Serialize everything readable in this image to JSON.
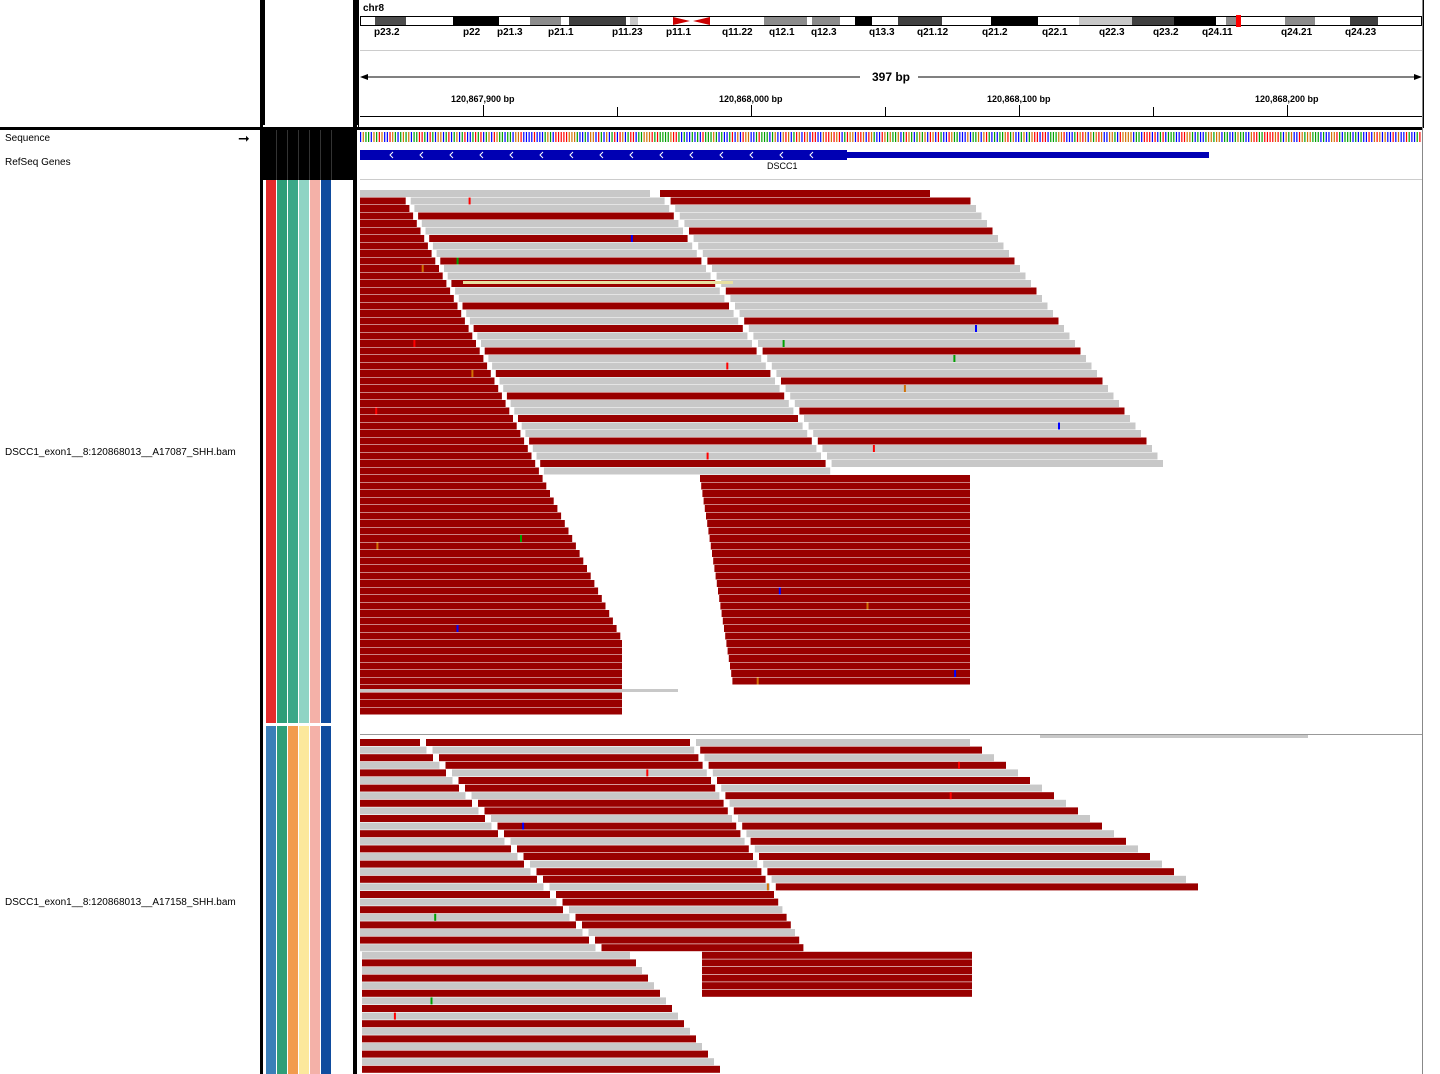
{
  "chromosome": "chr8",
  "cytobands": [
    {
      "name": "p23.2",
      "shade": "#4d4d4d"
    },
    {
      "name": "p22",
      "shade": "#000000"
    },
    {
      "name": "p21.3",
      "shade": "#ffffff"
    },
    {
      "name": "p21.1",
      "shade": "#8c8c8c"
    },
    {
      "name": "p11.23",
      "shade": "#404040"
    },
    {
      "name": "p11.1",
      "shade": "#ffffff"
    },
    {
      "name": "q11.22",
      "shade": "#ffffff"
    },
    {
      "name": "q12.1",
      "shade": "#8c8c8c"
    },
    {
      "name": "q12.3",
      "shade": "#8c8c8c"
    },
    {
      "name": "q13.3",
      "shade": "#000000"
    },
    {
      "name": "q21.12",
      "shade": "#404040"
    },
    {
      "name": "q21.2",
      "shade": "#000000"
    },
    {
      "name": "q22.1",
      "shade": "#ffffff"
    },
    {
      "name": "q22.3",
      "shade": "#c8c8c8"
    },
    {
      "name": "q23.2",
      "shade": "#404040"
    },
    {
      "name": "q24.11",
      "shade": "#000000"
    },
    {
      "name": "q24.21",
      "shade": "#8c8c8c"
    },
    {
      "name": "q24.23",
      "shade": "#404040"
    }
  ],
  "span_label": "397 bp",
  "ruler_ticks": [
    "120,867,900 bp",
    "120,868,000 bp",
    "120,868,100 bp",
    "120,868,200 bp"
  ],
  "tracks": {
    "sequence_label": "Sequence",
    "refseq_label": "RefSeq Genes",
    "gene_name": "DSCC1",
    "bam_1": "DSCC1_exon1__8:120868013__A17087_SHH.bam",
    "bam_2": "DSCC1_exon1__8:120868013__A17158_SHH.bam"
  },
  "colors": {
    "read_forward": "#c8c8c8",
    "read_reverse": "#990000",
    "gene": "#0000b3",
    "attr_1": [
      "#e52b2b",
      "#2e9e78",
      "#3aa888",
      "#8fd4c4",
      "#f4b1a8",
      "#0f4c9e"
    ],
    "attr_2": [
      "#3a7fb8",
      "#2e9e78",
      "#f29b4e",
      "#fce89c",
      "#f4b1a8",
      "#0f4c9e"
    ]
  }
}
